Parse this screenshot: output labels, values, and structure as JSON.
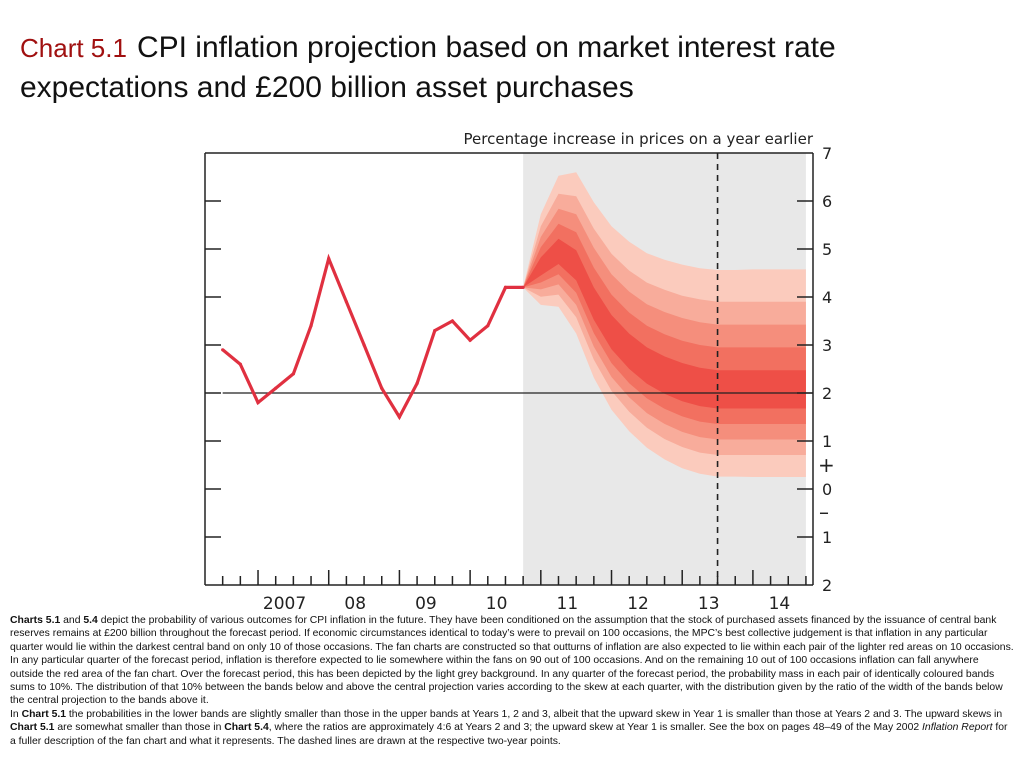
{
  "title": {
    "chart_number": "Chart 5.1",
    "text": "CPI inflation projection based on market interest rate expectations and £200 billion asset purchases"
  },
  "chart_data": {
    "type": "line",
    "subtitle": "Percentage increase in prices on a year earlier",
    "ylim": [
      -2,
      7
    ],
    "y_ticks": [
      {
        "value": 7,
        "label": "7"
      },
      {
        "value": 6,
        "label": "6"
      },
      {
        "value": 5,
        "label": "5"
      },
      {
        "value": 4,
        "label": "4"
      },
      {
        "value": 3,
        "label": "3"
      },
      {
        "value": 2,
        "label": "2"
      },
      {
        "value": 1,
        "label": "1"
      },
      {
        "value": 0,
        "label": "0"
      },
      {
        "value": -1,
        "label": "1"
      },
      {
        "value": -2,
        "label": "2"
      }
    ],
    "sign_markers": {
      "plus": "+",
      "minus": "–"
    },
    "x_range": [
      2006.25,
      2014.85
    ],
    "x_ticks": [
      2006.5,
      2006.75,
      2007,
      2007.25,
      2007.5,
      2007.75,
      2008,
      2008.25,
      2008.5,
      2008.75,
      2009,
      2009.25,
      2009.5,
      2009.75,
      2010,
      2010.25,
      2010.5,
      2010.75,
      2011,
      2011.25,
      2011.5,
      2011.75,
      2012,
      2012.25,
      2012.5,
      2012.75,
      2013,
      2013.25,
      2013.5,
      2013.75,
      2014,
      2014.25,
      2014.5,
      2014.75
    ],
    "x_labels": [
      {
        "x": 2007.0,
        "label": "2007"
      },
      {
        "x": 2008.0,
        "label": "08"
      },
      {
        "x": 2009.0,
        "label": "09"
      },
      {
        "x": 2010.0,
        "label": "10"
      },
      {
        "x": 2011.0,
        "label": "11"
      },
      {
        "x": 2012.0,
        "label": "12"
      },
      {
        "x": 2013.0,
        "label": "13"
      },
      {
        "x": 2014.0,
        "label": "14"
      }
    ],
    "forecast_shading": {
      "from": 2010.75,
      "to": 2014.75
    },
    "target_line": 2.0,
    "dashed_line_x": 2013.5,
    "series": [
      {
        "x": [
          2006.5,
          2006.75,
          2007.0,
          2007.25,
          2007.5,
          2007.75,
          2008.0,
          2008.25,
          2008.5,
          2008.75,
          2009.0,
          2009.25,
          2009.5,
          2009.75,
          2010.0,
          2010.25,
          2010.5,
          2010.75
        ],
        "values": [
          2.9,
          2.6,
          1.8,
          2.1,
          2.4,
          3.4,
          4.8,
          3.9,
          3.0,
          2.1,
          1.5,
          2.2,
          3.3,
          3.5,
          3.1,
          3.4,
          4.2,
          4.2
        ],
        "color": "#e03040"
      }
    ],
    "fan": {
      "x": [
        2010.75,
        2011.0,
        2011.25,
        2011.5,
        2011.75,
        2012.0,
        2012.25,
        2012.5,
        2012.75,
        2013.0,
        2013.25,
        2013.5,
        2013.75,
        2014.0,
        2014.25,
        2014.5,
        2014.75
      ],
      "central": [
        4.2,
        4.6,
        4.9,
        4.6,
        3.8,
        3.2,
        2.8,
        2.5,
        2.3,
        2.15,
        2.05,
        2.0,
        2.0,
        2.0,
        2.0,
        2.0,
        2.0
      ],
      "half_widths": [
        [
          0.0,
          0.18,
          0.25,
          0.3,
          0.32,
          0.34,
          0.35,
          0.36,
          0.37,
          0.38,
          0.38,
          0.38,
          0.38,
          0.38,
          0.38,
          0.38,
          0.38
        ],
        [
          0.0,
          0.35,
          0.5,
          0.6,
          0.65,
          0.68,
          0.7,
          0.72,
          0.74,
          0.75,
          0.76,
          0.76,
          0.76,
          0.76,
          0.76,
          0.76,
          0.76
        ],
        [
          0.0,
          0.52,
          0.75,
          0.9,
          0.98,
          1.02,
          1.05,
          1.08,
          1.11,
          1.13,
          1.14,
          1.14,
          1.14,
          1.14,
          1.14,
          1.14,
          1.14
        ],
        [
          0.0,
          0.7,
          1.0,
          1.2,
          1.3,
          1.36,
          1.4,
          1.44,
          1.48,
          1.5,
          1.52,
          1.52,
          1.52,
          1.52,
          1.52,
          1.52,
          1.52
        ],
        [
          0.0,
          0.9,
          1.3,
          1.6,
          1.74,
          1.82,
          1.88,
          1.93,
          1.98,
          2.02,
          2.04,
          2.05,
          2.05,
          2.06,
          2.06,
          2.06,
          2.06
        ]
      ],
      "upper_skew": 1.25,
      "lower_skew": 0.85,
      "colors": [
        "#ee4f47",
        "#f27060",
        "#f58e7c",
        "#f8ac9b",
        "#fbcbbd"
      ]
    },
    "colors": {
      "shading": "#e8e8e8",
      "axis": "#222222",
      "line": "#e03040"
    }
  },
  "notes": {
    "p1_b1": "Charts 5.1",
    "p1_t1": " and ",
    "p1_b2": "5.4",
    "p1_t2": " depict the probability of various outcomes for CPI inflation in the future.  They have been conditioned on the assumption that the stock of purchased assets financed by the issuance of central bank reserves remains at £200 billion throughout the forecast period.  If economic circumstances identical to today’s were to prevail on 100 occasions, the MPC’s best collective judgement is that inflation in any particular quarter would lie within the darkest central band on only 10 of those occasions.  The fan charts are constructed so that outturns of inflation are also expected to lie within each pair of the lighter red areas on 10 occasions.  In any particular quarter of the forecast period, inflation is therefore expected to lie somewhere within the fans on 90 out of 100 occasions.  And on the remaining 10 out of 100 occasions inflation can fall anywhere outside the red area of the fan chart.  Over the forecast period, this has been depicted by the light grey background.  In any quarter of the forecast period, the probability mass in each pair of identically coloured bands sums to 10%.  The distribution of that 10% between the bands below and above the central projection varies according to the skew at each quarter, with the distribution given by the ratio of the width of the bands below the central projection to the bands above it.",
    "p2_t0": "In ",
    "p2_b1": "Chart 5.1",
    "p2_t1": " the probabilities in the lower bands are slightly smaller than those in the upper bands at Years 1, 2 and 3, albeit that the upward skew in Year 1 is smaller than those at Years 2 and 3.  The upward skews in ",
    "p2_b2": "Chart 5.1",
    "p2_t2": " are somewhat smaller than those in ",
    "p2_b3": "Chart 5.4",
    "p2_t3": ", where the ratios are approximately 4:6 at Years 2 and 3;  the upward skew at Year 1 is smaller.  See the box on pages 48–49 of the May 2002 ",
    "p2_i1": "Inflation Report",
    "p2_t4": " for a fuller description of the fan chart and what it represents.  The dashed lines are drawn at the respective two-year points."
  }
}
